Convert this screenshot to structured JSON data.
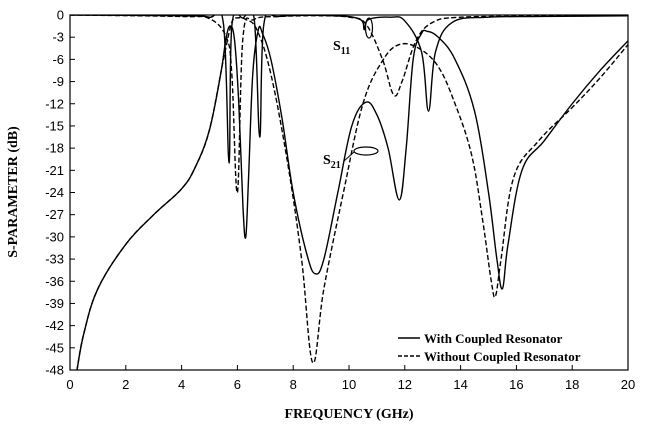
{
  "chart_data": {
    "type": "line",
    "title": "",
    "xlabel": "FREQUENCY (GHz)",
    "ylabel": "S-PARAMETER (dB)",
    "xlim": [
      0,
      20
    ],
    "ylim": [
      -48,
      0
    ],
    "xticks": [
      0,
      2,
      4,
      6,
      8,
      10,
      12,
      14,
      16,
      18,
      20
    ],
    "yticks": [
      0,
      -3,
      -6,
      -9,
      -12,
      -15,
      -18,
      -21,
      -24,
      -27,
      -30,
      -33,
      -36,
      -39,
      -42,
      -45,
      -48
    ],
    "grid": false,
    "legend": {
      "position": "bottom-right"
    },
    "annotations": [
      {
        "text": "S",
        "sub": "11",
        "x": 10.5,
        "y": -2.5
      },
      {
        "text": "S",
        "sub": "21",
        "x": 9.5,
        "y": -19.5
      }
    ],
    "series": [
      {
        "name": "With Coupled Resonator",
        "style": "solid",
        "parameter": "S21",
        "points": [
          [
            0.25,
            -48
          ],
          [
            0.5,
            -43
          ],
          [
            1,
            -37
          ],
          [
            2,
            -31
          ],
          [
            3,
            -27
          ],
          [
            4,
            -23.5
          ],
          [
            4.5,
            -20.5
          ],
          [
            5,
            -15.5
          ],
          [
            5.4,
            -8
          ],
          [
            5.6,
            -3
          ],
          [
            5.75,
            -1.5
          ],
          [
            5.9,
            -3.5
          ],
          [
            6.05,
            -12
          ],
          [
            6.2,
            -26
          ],
          [
            6.3,
            -30
          ],
          [
            6.4,
            -22
          ],
          [
            6.55,
            -8
          ],
          [
            6.75,
            -2
          ],
          [
            6.9,
            -2.5
          ],
          [
            7.2,
            -6
          ],
          [
            7.6,
            -14
          ],
          [
            8,
            -24
          ],
          [
            8.5,
            -32.5
          ],
          [
            8.8,
            -35
          ],
          [
            9.1,
            -33
          ],
          [
            9.6,
            -24
          ],
          [
            10.1,
            -15
          ],
          [
            10.6,
            -11.8
          ],
          [
            11.0,
            -13.5
          ],
          [
            11.4,
            -18
          ],
          [
            11.8,
            -25
          ],
          [
            12.05,
            -18
          ],
          [
            12.3,
            -6
          ],
          [
            12.6,
            -2.5
          ],
          [
            12.8,
            -2.2
          ],
          [
            13.2,
            -3
          ],
          [
            13.8,
            -6
          ],
          [
            14.5,
            -13
          ],
          [
            15.0,
            -24
          ],
          [
            15.3,
            -33
          ],
          [
            15.5,
            -37
          ],
          [
            15.7,
            -31
          ],
          [
            16.2,
            -21
          ],
          [
            17,
            -17
          ],
          [
            18,
            -12
          ],
          [
            19,
            -7.5
          ],
          [
            20,
            -3.5
          ]
        ]
      },
      {
        "name": "With Coupled Resonator",
        "style": "solid",
        "parameter": "S11",
        "points": [
          [
            0,
            0
          ],
          [
            4,
            -0.1
          ],
          [
            5,
            -0.3
          ],
          [
            5.5,
            -1.2
          ],
          [
            5.7,
            -20
          ],
          [
            5.8,
            -1.5
          ],
          [
            6.2,
            -0.4
          ],
          [
            6.6,
            -0.5
          ],
          [
            6.8,
            -16.5
          ],
          [
            6.95,
            -1.2
          ],
          [
            7.5,
            -0.2
          ],
          [
            9.5,
            -0.1
          ],
          [
            10.4,
            -0.6
          ],
          [
            10.55,
            -2
          ],
          [
            10.7,
            -0.6
          ],
          [
            11.5,
            -0.3
          ],
          [
            12.0,
            -0.8
          ],
          [
            12.6,
            -5
          ],
          [
            12.85,
            -13
          ],
          [
            13.1,
            -5
          ],
          [
            13.7,
            -1
          ],
          [
            15,
            -0.3
          ],
          [
            17,
            -0.2
          ],
          [
            20,
            -0.1
          ]
        ]
      },
      {
        "name": "Without Coupled Resonator",
        "style": "dashed",
        "parameter": "S21",
        "points": [
          [
            0.25,
            -48
          ],
          [
            0.5,
            -43
          ],
          [
            1,
            -37
          ],
          [
            2,
            -31
          ],
          [
            3,
            -27
          ],
          [
            4,
            -23.5
          ],
          [
            4.5,
            -20.5
          ],
          [
            5,
            -15.5
          ],
          [
            5.5,
            -6
          ],
          [
            5.8,
            -1
          ],
          [
            6.0,
            -0.4
          ],
          [
            6.3,
            -0.6
          ],
          [
            6.7,
            -2
          ],
          [
            7.2,
            -8
          ],
          [
            7.8,
            -20
          ],
          [
            8.3,
            -33
          ],
          [
            8.7,
            -47
          ],
          [
            9.1,
            -37
          ],
          [
            9.8,
            -24
          ],
          [
            10.5,
            -12
          ],
          [
            11.2,
            -6.2
          ],
          [
            11.8,
            -4
          ],
          [
            12.5,
            -4.5
          ],
          [
            13.2,
            -7
          ],
          [
            13.8,
            -12
          ],
          [
            14.4,
            -19
          ],
          [
            14.8,
            -28
          ],
          [
            15.1,
            -36
          ],
          [
            15.25,
            -38
          ],
          [
            15.45,
            -33
          ],
          [
            15.9,
            -22
          ],
          [
            16.8,
            -17
          ],
          [
            18,
            -12.5
          ],
          [
            19,
            -8.5
          ],
          [
            20,
            -4
          ]
        ]
      },
      {
        "name": "Without Coupled Resonator",
        "style": "dashed",
        "parameter": "S11",
        "points": [
          [
            0,
            0
          ],
          [
            4,
            -0.2
          ],
          [
            5,
            -0.5
          ],
          [
            5.6,
            -3
          ],
          [
            5.8,
            -8
          ],
          [
            6.0,
            -24
          ],
          [
            6.2,
            -3
          ],
          [
            6.6,
            -0.6
          ],
          [
            7.5,
            -0.2
          ],
          [
            9,
            -0.1
          ],
          [
            10,
            -0.3
          ],
          [
            10.6,
            -1.2
          ],
          [
            11.2,
            -6
          ],
          [
            11.6,
            -10.8
          ],
          [
            11.9,
            -9
          ],
          [
            12.4,
            -3.5
          ],
          [
            13,
            -1
          ],
          [
            14,
            -0.3
          ],
          [
            17,
            -0.15
          ],
          [
            20,
            -0.1
          ]
        ]
      }
    ]
  }
}
